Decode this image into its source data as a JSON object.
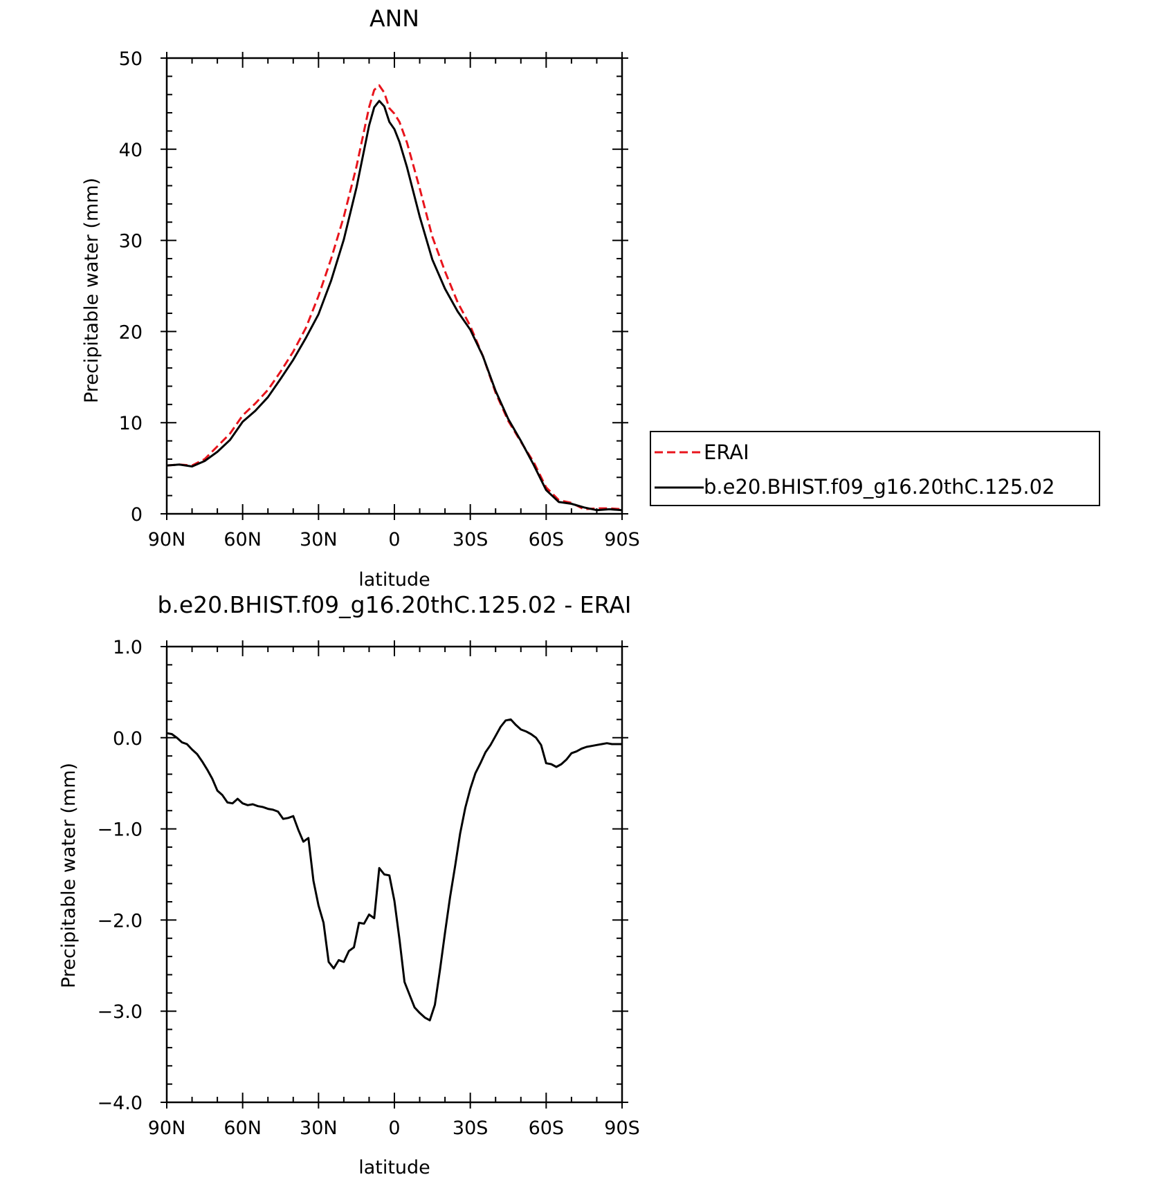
{
  "chart_data": [
    {
      "type": "line",
      "title": "ANN",
      "xlabel": "latitude",
      "ylabel": "Precipitable water (mm)",
      "xlim": [
        90,
        -90
      ],
      "ylim": [
        0,
        50
      ],
      "x_ticks": [
        90,
        60,
        30,
        0,
        -30,
        -60,
        -90
      ],
      "x_tick_labels": [
        "90N",
        "60N",
        "30N",
        "0",
        "30S",
        "60S",
        "90S"
      ],
      "y_ticks": [
        0,
        10,
        20,
        30,
        40,
        50
      ],
      "y_tick_labels": [
        "0",
        "10",
        "20",
        "30",
        "40",
        "50"
      ],
      "grid": false,
      "legend": {
        "placement": "right",
        "entries": [
          "ERAI",
          "b.e20.BHIST.f09_g16.20thC.125.02"
        ]
      },
      "series": [
        {
          "name": "ERAI",
          "color": "#e8141c",
          "dash": "dashed",
          "x": [
            90,
            85,
            80,
            75,
            70,
            65,
            60,
            55,
            50,
            45,
            40,
            35,
            30,
            25,
            20,
            15,
            10,
            8,
            6,
            4,
            2,
            0,
            -2,
            -5,
            -10,
            -15,
            -20,
            -25,
            -30,
            -35,
            -40,
            -45,
            -50,
            -55,
            -60,
            -65,
            -70,
            -75,
            -80,
            -85,
            -90
          ],
          "y": [
            5.3,
            5.4,
            5.3,
            6.0,
            7.4,
            8.8,
            10.8,
            12.1,
            13.6,
            15.6,
            17.8,
            20.4,
            23.9,
            28.0,
            32.6,
            38.1,
            44.6,
            46.5,
            47.0,
            46.2,
            44.5,
            43.9,
            43.0,
            40.7,
            35.7,
            30.4,
            26.6,
            23.2,
            20.6,
            17.3,
            13.3,
            10.2,
            7.9,
            5.7,
            2.9,
            1.5,
            1.2,
            0.5,
            0.6,
            0.6,
            0.5
          ],
          "note": "plotted against the latitude axis"
        },
        {
          "name": "b.e20.BHIST.f09_g16.20thC.125.02",
          "color": "#000000",
          "dash": "solid",
          "x": [
            90,
            85,
            80,
            75,
            70,
            65,
            60,
            55,
            50,
            45,
            40,
            35,
            30,
            25,
            20,
            15,
            10,
            8,
            6,
            4,
            2,
            0,
            -2,
            -5,
            -10,
            -15,
            -20,
            -25,
            -30,
            -35,
            -40,
            -45,
            -50,
            -55,
            -60,
            -65,
            -70,
            -75,
            -80,
            -85,
            -90
          ],
          "y": [
            5.3,
            5.4,
            5.2,
            5.8,
            6.8,
            8.1,
            10.1,
            11.3,
            12.8,
            14.8,
            16.9,
            19.3,
            21.9,
            25.6,
            30.1,
            35.8,
            42.6,
            44.6,
            45.3,
            44.7,
            43.0,
            42.2,
            40.8,
            38.0,
            32.6,
            27.9,
            24.7,
            22.2,
            20.2,
            17.3,
            13.5,
            10.4,
            8.0,
            5.4,
            2.6,
            1.3,
            1.1,
            0.7,
            0.4,
            0.5,
            0.4
          ]
        }
      ]
    },
    {
      "type": "line",
      "title": "b.e20.BHIST.f09_g16.20thC.125.02 - ERAI",
      "xlabel": "latitude",
      "ylabel": "Precipitable water (mm)",
      "xlim": [
        90,
        -90
      ],
      "ylim": [
        -4.0,
        1.0
      ],
      "x_ticks": [
        90,
        60,
        30,
        0,
        -30,
        -60,
        -90
      ],
      "x_tick_labels": [
        "90N",
        "60N",
        "30N",
        "0",
        "30S",
        "60S",
        "90S"
      ],
      "y_ticks": [
        1.0,
        0.0,
        -1.0,
        -2.0,
        -3.0,
        -4.0
      ],
      "y_tick_labels": [
        "1.0",
        "0.0",
        "−1.0",
        "−2.0",
        "−3.0",
        "−4.0"
      ],
      "grid": false,
      "series": [
        {
          "color": "#000000",
          "dash": "solid",
          "x": [
            90,
            88,
            86,
            84,
            82,
            80,
            78,
            76,
            74,
            72,
            70,
            68,
            66,
            64,
            62,
            60,
            58,
            56,
            54,
            52,
            50,
            48,
            46,
            44,
            42,
            40,
            38,
            36,
            34,
            32,
            30,
            28,
            26,
            24,
            22,
            20,
            18,
            16,
            14,
            12,
            10,
            8,
            6,
            4,
            2,
            0,
            -2,
            -4,
            -6,
            -8,
            -10,
            -12,
            -14,
            -16,
            -18,
            -20,
            -22,
            -24,
            -26,
            -28,
            -30,
            -32,
            -34,
            -36,
            -38,
            -40,
            -42,
            -44,
            -46,
            -48,
            -50,
            -52,
            -54,
            -56,
            -58,
            -60,
            -62,
            -64,
            -66,
            -68,
            -70,
            -72,
            -74,
            -76,
            -78,
            -80,
            -82,
            -84,
            -86,
            -88,
            -90
          ],
          "y": [
            0.05,
            0.04,
            0.0,
            -0.05,
            -0.07,
            -0.13,
            -0.18,
            -0.26,
            -0.35,
            -0.45,
            -0.58,
            -0.63,
            -0.71,
            -0.72,
            -0.67,
            -0.72,
            -0.74,
            -0.73,
            -0.75,
            -0.76,
            -0.78,
            -0.79,
            -0.81,
            -0.89,
            -0.88,
            -0.86,
            -1.01,
            -1.14,
            -1.1,
            -1.57,
            -1.84,
            -2.03,
            -2.46,
            -2.53,
            -2.44,
            -2.46,
            -2.34,
            -2.3,
            -2.03,
            -2.04,
            -1.94,
            -1.98,
            -1.43,
            -1.5,
            -1.51,
            -1.79,
            -2.21,
            -2.68,
            -2.82,
            -2.96,
            -3.02,
            -3.07,
            -3.1,
            -2.93,
            -2.55,
            -2.14,
            -1.75,
            -1.41,
            -1.05,
            -0.77,
            -0.56,
            -0.39,
            -0.28,
            -0.16,
            -0.08,
            0.02,
            0.12,
            0.19,
            0.2,
            0.14,
            0.09,
            0.07,
            0.04,
            0.0,
            -0.08,
            -0.28,
            -0.29,
            -0.32,
            -0.29,
            -0.24,
            -0.17,
            -0.15,
            -0.12,
            -0.1,
            -0.09,
            -0.08,
            -0.07,
            -0.06,
            -0.07,
            -0.07,
            -0.07
          ]
        }
      ]
    }
  ]
}
